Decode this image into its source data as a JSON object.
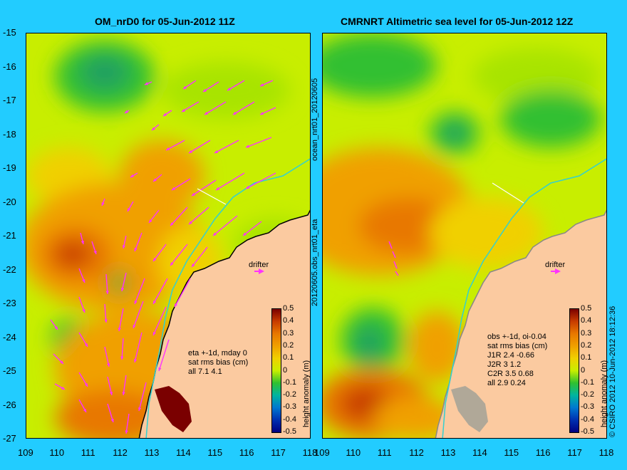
{
  "left_panel": {
    "title": "OM_nrD0 for 05-Jun-2012 11Z",
    "drifter_label": "drifter",
    "stats": [
      "eta +-1d, mday 0",
      "sat rms bias (cm)",
      "all 7.1 4.1"
    ]
  },
  "right_panel": {
    "title": "CMRNRT Altimetric sea level  for 05-Jun-2012 12Z",
    "drifter_label": "drifter",
    "stats": [
      "obs +-1d, oi-0.04",
      "sat rms bias (cm)",
      "J1R   2.4 -0.66",
      "J2R   3 1.2",
      "C2R   3.5 0.68",
      "all 2.9 0.24"
    ]
  },
  "side_labels": {
    "left_top": "ocean_nrt01_20120605",
    "left_bottom": "20120605.obs_nrt01_eta",
    "right": "© CSIRO 2012  10-Jun-2012 18:12:36"
  },
  "colorbar": {
    "label": "height anomaly (m)",
    "ticks": [
      "0.5",
      "0.4",
      "0.3",
      "0.2",
      "0.1",
      "0",
      "-0.1",
      "-0.2",
      "-0.3",
      "-0.4",
      "-0.5"
    ],
    "colors": [
      "#7a0000",
      "#c83c00",
      "#e87800",
      "#f0a000",
      "#f0d000",
      "#c8ee00",
      "#30c030",
      "#00b4a0",
      "#0078d0",
      "#0030b0",
      "#000080"
    ]
  },
  "axes": {
    "y_ticks": [
      "-15",
      "-16",
      "-17",
      "-18",
      "-19",
      "-20",
      "-21",
      "-22",
      "-23",
      "-24",
      "-25",
      "-26",
      "-27"
    ],
    "x_ticks": [
      "109",
      "110",
      "111",
      "112",
      "113",
      "114",
      "115",
      "116",
      "117",
      "118"
    ]
  },
  "colors": {
    "background": "#22ccff",
    "land": "#fbcaa0",
    "arrows": "#ff33ff",
    "current_line": "#33d0d0"
  }
}
